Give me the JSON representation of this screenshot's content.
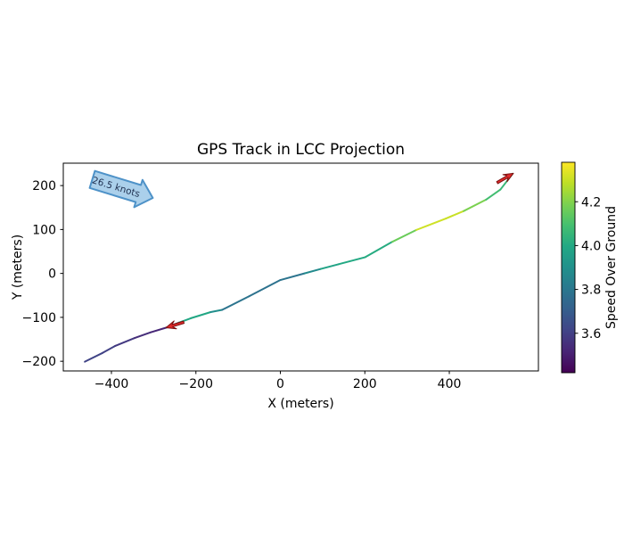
{
  "figure": {
    "title": "GPS Track in LCC Projection",
    "xlabel": "X (meters)",
    "ylabel": "Y (meters)",
    "annotation_label": "26.5 knots",
    "colorbar_label": "Speed Over Ground"
  },
  "chart_data": {
    "type": "line",
    "title": "GPS Track in LCC Projection",
    "xlabel": "X (meters)",
    "ylabel": "Y (meters)",
    "xlim": [
      -514,
      611
    ],
    "ylim": [
      -222,
      251
    ],
    "xticks": [
      -400,
      -200,
      0,
      200,
      400
    ],
    "yticks": [
      200,
      100,
      0,
      -100,
      -200
    ],
    "xtick_labels": [
      "−400",
      "−200",
      "0",
      "200",
      "400"
    ],
    "ytick_labels": [
      "200",
      "100",
      "0",
      "−100",
      "−200"
    ],
    "grid": false,
    "colormap": "viridis",
    "legend": "none",
    "colorbar": {
      "label": "Speed Over Ground",
      "vmin": 3.42,
      "vmax": 4.38,
      "ticks": [
        3.6,
        3.8,
        4.0,
        4.2
      ],
      "tick_labels": [
        "3.6",
        "3.8",
        "4.0",
        "4.2"
      ],
      "position": "right"
    },
    "annotation": {
      "text": "26.5 knots",
      "x": -375,
      "y": 194,
      "rotation_deg": 17
    },
    "series": [
      {
        "name": "gps-track-speed-colored",
        "points": [
          {
            "x": -463,
            "y": -201,
            "speed": 3.62
          },
          {
            "x": -421,
            "y": -181,
            "speed": 3.61
          },
          {
            "x": -391,
            "y": -165,
            "speed": 3.6
          },
          {
            "x": -345,
            "y": -147,
            "speed": 3.56
          },
          {
            "x": -307,
            "y": -134,
            "speed": 3.53
          },
          {
            "x": -269,
            "y": -123,
            "speed": 3.52
          },
          {
            "x": -240,
            "y": -112,
            "speed": 3.98
          },
          {
            "x": -212,
            "y": -102,
            "speed": 4.0
          },
          {
            "x": -165,
            "y": -88,
            "speed": 3.98
          },
          {
            "x": -138,
            "y": -83,
            "speed": 3.8
          },
          {
            "x": -74,
            "y": -52,
            "speed": 3.78
          },
          {
            "x": 0,
            "y": -15,
            "speed": 3.78
          },
          {
            "x": 57,
            "y": 0,
            "speed": 3.8
          },
          {
            "x": 95,
            "y": 10,
            "speed": 3.95
          },
          {
            "x": 138,
            "y": 21,
            "speed": 4.0
          },
          {
            "x": 201,
            "y": 37,
            "speed": 4.0
          },
          {
            "x": 265,
            "y": 72,
            "speed": 4.02
          },
          {
            "x": 322,
            "y": 99,
            "speed": 4.3
          },
          {
            "x": 392,
            "y": 125,
            "speed": 4.32
          },
          {
            "x": 434,
            "y": 142,
            "speed": 4.28
          },
          {
            "x": 487,
            "y": 168,
            "speed": 4.1
          },
          {
            "x": 521,
            "y": 191,
            "speed": 4.07
          },
          {
            "x": 550,
            "y": 227,
            "speed": 4.05
          }
        ]
      }
    ],
    "direction_markers": [
      {
        "x": -269,
        "y": -123,
        "heading_deg": 163,
        "color": "#e02b2b"
      },
      {
        "x": 550,
        "y": 227,
        "heading_deg": -30,
        "color": "#e02b2b"
      }
    ]
  },
  "colors": {
    "background": "#ffffff",
    "axes_edge": "#000000",
    "annotation_fill": "#abd0eb",
    "annotation_edge": "#4e92c8",
    "marker_fill": "#e02b2b",
    "marker_edge": "#7a1010"
  }
}
